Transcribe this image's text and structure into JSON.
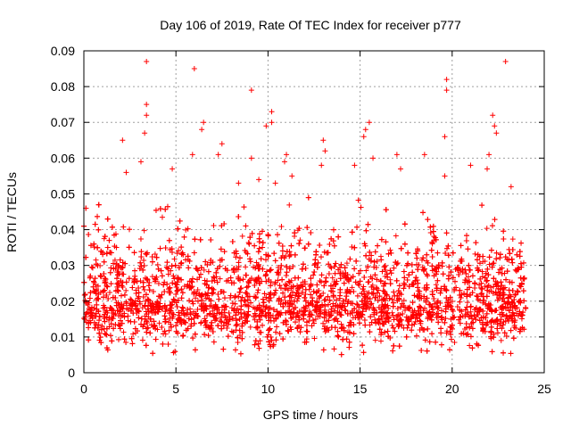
{
  "chart_data": {
    "type": "scatter",
    "title": "Day 106 of 2019, Rate Of TEC Index for receiver p777",
    "xlabel": "GPS time / hours",
    "ylabel": "ROTI / TECUs",
    "xlim": [
      0,
      25
    ],
    "ylim": [
      0,
      0.09
    ],
    "xticks": [
      0,
      5,
      10,
      15,
      20,
      25
    ],
    "xtick_labels": [
      "0",
      "5",
      "10",
      "15",
      "20",
      "25"
    ],
    "yticks": [
      0,
      0.01,
      0.02,
      0.03,
      0.04,
      0.05,
      0.06,
      0.07,
      0.08,
      0.09
    ],
    "ytick_labels": [
      "0",
      "0.01",
      "0.02",
      "0.03",
      "0.04",
      "0.05",
      "0.06",
      "0.07",
      "0.08",
      "0.09"
    ],
    "grid": true,
    "marker": "+",
    "marker_color": "#ff0000",
    "x_data_range": [
      0,
      24
    ],
    "series": [
      {
        "name": "ROTI",
        "points": [
          [
            3.4,
            0.087
          ],
          [
            6.0,
            0.085
          ],
          [
            9.1,
            0.079
          ],
          [
            22.9,
            0.087
          ],
          [
            19.7,
            0.082
          ],
          [
            19.7,
            0.079
          ],
          [
            3.4,
            0.075
          ],
          [
            3.4,
            0.072
          ],
          [
            10.2,
            0.073
          ],
          [
            10.2,
            0.07
          ],
          [
            9.9,
            0.069
          ],
          [
            22.2,
            0.072
          ],
          [
            22.3,
            0.069
          ],
          [
            22.4,
            0.067
          ],
          [
            15.5,
            0.07
          ],
          [
            15.3,
            0.068
          ],
          [
            15.2,
            0.066
          ],
          [
            6.5,
            0.07
          ],
          [
            6.4,
            0.068
          ],
          [
            2.1,
            0.065
          ],
          [
            3.3,
            0.067
          ],
          [
            19.6,
            0.066
          ],
          [
            13.0,
            0.065
          ],
          [
            7.5,
            0.064
          ],
          [
            13.1,
            0.062
          ],
          [
            11.0,
            0.061
          ],
          [
            9.1,
            0.06
          ],
          [
            5.9,
            0.061
          ],
          [
            22.0,
            0.061
          ],
          [
            15.7,
            0.06
          ],
          [
            17.0,
            0.061
          ],
          [
            18.5,
            0.061
          ],
          [
            2.3,
            0.056
          ],
          [
            3.1,
            0.059
          ],
          [
            4.8,
            0.057
          ],
          [
            7.3,
            0.061
          ],
          [
            10.9,
            0.059
          ],
          [
            11.3,
            0.055
          ],
          [
            12.9,
            0.058
          ],
          [
            14.7,
            0.058
          ],
          [
            17.2,
            0.057
          ],
          [
            19.6,
            0.055
          ],
          [
            21.0,
            0.058
          ],
          [
            21.9,
            0.057
          ],
          [
            23.2,
            0.052
          ],
          [
            8.4,
            0.053
          ],
          [
            9.5,
            0.054
          ],
          [
            10.4,
            0.053
          ]
        ]
      }
    ]
  }
}
